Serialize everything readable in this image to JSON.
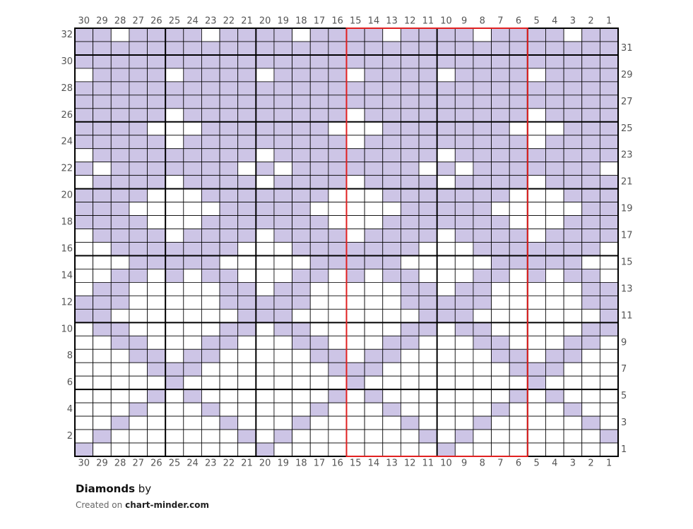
{
  "title": "Diamonds",
  "by": "by",
  "created_on": "Created on",
  "site": "chart-minder.com",
  "filled_color": "#cdc5e6",
  "empty_color": "#ffffff",
  "repeat_color": "#e02020",
  "repeat_columns": [
    15,
    6
  ],
  "column_numbers": [
    30,
    29,
    28,
    27,
    26,
    25,
    24,
    23,
    22,
    21,
    20,
    19,
    18,
    17,
    16,
    15,
    14,
    13,
    12,
    11,
    10,
    9,
    8,
    7,
    6,
    5,
    4,
    3,
    2,
    1
  ],
  "row_numbers": [
    32,
    31,
    30,
    29,
    28,
    27,
    26,
    25,
    24,
    23,
    22,
    21,
    20,
    19,
    18,
    17,
    16,
    15,
    14,
    13,
    12,
    11,
    10,
    9,
    8,
    7,
    6,
    5,
    4,
    3,
    2,
    1
  ],
  "cells": [
    [
      1,
      1,
      0,
      1,
      1,
      1,
      1,
      0,
      1,
      1,
      1,
      1,
      0,
      1,
      1,
      1,
      1,
      0,
      1,
      1,
      1,
      1,
      0,
      1,
      1,
      1,
      1,
      0,
      1,
      1
    ],
    [
      1,
      1,
      1,
      1,
      1,
      1,
      1,
      1,
      1,
      1,
      1,
      1,
      1,
      1,
      1,
      1,
      1,
      1,
      1,
      1,
      1,
      1,
      1,
      1,
      1,
      1,
      1,
      1,
      1,
      1
    ],
    [
      1,
      1,
      1,
      1,
      1,
      1,
      1,
      1,
      1,
      1,
      1,
      1,
      1,
      1,
      1,
      1,
      1,
      1,
      1,
      1,
      1,
      1,
      1,
      1,
      1,
      1,
      1,
      1,
      1,
      1
    ],
    [
      0,
      1,
      1,
      1,
      1,
      0,
      1,
      1,
      1,
      1,
      0,
      1,
      1,
      1,
      1,
      0,
      1,
      1,
      1,
      1,
      0,
      1,
      1,
      1,
      1,
      0,
      1,
      1,
      1,
      1
    ],
    [
      1,
      1,
      1,
      1,
      1,
      1,
      1,
      1,
      1,
      1,
      1,
      1,
      1,
      1,
      1,
      1,
      1,
      1,
      1,
      1,
      1,
      1,
      1,
      1,
      1,
      1,
      1,
      1,
      1,
      1
    ],
    [
      1,
      1,
      1,
      1,
      1,
      1,
      1,
      1,
      1,
      1,
      1,
      1,
      1,
      1,
      1,
      1,
      1,
      1,
      1,
      1,
      1,
      1,
      1,
      1,
      1,
      1,
      1,
      1,
      1,
      1
    ],
    [
      1,
      1,
      1,
      1,
      1,
      0,
      1,
      1,
      1,
      1,
      1,
      1,
      1,
      1,
      1,
      0,
      1,
      1,
      1,
      1,
      1,
      1,
      1,
      1,
      1,
      0,
      1,
      1,
      1,
      1
    ],
    [
      1,
      1,
      1,
      1,
      0,
      0,
      0,
      1,
      1,
      1,
      1,
      1,
      1,
      1,
      0,
      0,
      0,
      1,
      1,
      1,
      1,
      1,
      1,
      1,
      0,
      0,
      0,
      1,
      1,
      1
    ],
    [
      1,
      1,
      1,
      1,
      1,
      0,
      1,
      1,
      1,
      1,
      1,
      1,
      1,
      1,
      1,
      0,
      1,
      1,
      1,
      1,
      1,
      1,
      1,
      1,
      1,
      0,
      1,
      1,
      1,
      1
    ],
    [
      0,
      1,
      1,
      1,
      1,
      1,
      1,
      1,
      1,
      1,
      0,
      1,
      1,
      1,
      1,
      1,
      1,
      1,
      1,
      1,
      0,
      1,
      1,
      1,
      1,
      1,
      1,
      1,
      1,
      1
    ],
    [
      1,
      0,
      1,
      1,
      1,
      1,
      1,
      1,
      1,
      0,
      1,
      0,
      1,
      1,
      1,
      1,
      1,
      1,
      1,
      0,
      1,
      0,
      1,
      1,
      1,
      1,
      1,
      1,
      1,
      0
    ],
    [
      0,
      1,
      1,
      1,
      1,
      0,
      1,
      1,
      1,
      1,
      0,
      1,
      1,
      1,
      1,
      0,
      1,
      1,
      1,
      1,
      0,
      1,
      1,
      1,
      1,
      0,
      1,
      1,
      1,
      1
    ],
    [
      1,
      1,
      1,
      1,
      0,
      0,
      0,
      1,
      1,
      1,
      1,
      1,
      1,
      1,
      0,
      0,
      0,
      1,
      1,
      1,
      1,
      1,
      1,
      1,
      0,
      0,
      0,
      1,
      1,
      1
    ],
    [
      1,
      1,
      1,
      0,
      0,
      0,
      0,
      0,
      1,
      1,
      1,
      1,
      1,
      0,
      0,
      0,
      0,
      0,
      1,
      1,
      1,
      1,
      1,
      0,
      0,
      0,
      0,
      0,
      1,
      1
    ],
    [
      1,
      1,
      1,
      1,
      0,
      0,
      0,
      1,
      1,
      1,
      1,
      1,
      1,
      1,
      0,
      0,
      0,
      1,
      1,
      1,
      1,
      1,
      1,
      1,
      0,
      0,
      0,
      1,
      1,
      1
    ],
    [
      0,
      1,
      1,
      1,
      1,
      0,
      1,
      1,
      1,
      1,
      0,
      1,
      1,
      1,
      1,
      0,
      1,
      1,
      1,
      1,
      0,
      1,
      1,
      1,
      1,
      0,
      1,
      1,
      1,
      1
    ],
    [
      0,
      0,
      1,
      1,
      1,
      1,
      1,
      1,
      1,
      0,
      0,
      0,
      1,
      1,
      1,
      1,
      1,
      1,
      1,
      0,
      0,
      0,
      1,
      1,
      1,
      1,
      1,
      1,
      1,
      0
    ],
    [
      0,
      0,
      0,
      1,
      1,
      1,
      1,
      1,
      0,
      0,
      0,
      0,
      0,
      1,
      1,
      1,
      1,
      1,
      0,
      0,
      0,
      0,
      0,
      1,
      1,
      1,
      1,
      1,
      0,
      0
    ],
    [
      0,
      0,
      1,
      1,
      0,
      1,
      0,
      1,
      1,
      0,
      0,
      0,
      1,
      1,
      0,
      1,
      0,
      1,
      1,
      0,
      0,
      0,
      1,
      1,
      0,
      1,
      0,
      1,
      1,
      0
    ],
    [
      0,
      1,
      1,
      0,
      0,
      0,
      0,
      0,
      1,
      1,
      0,
      1,
      1,
      0,
      0,
      0,
      0,
      0,
      1,
      1,
      0,
      1,
      1,
      0,
      0,
      0,
      0,
      0,
      1,
      1
    ],
    [
      1,
      1,
      1,
      0,
      0,
      0,
      0,
      0,
      1,
      1,
      1,
      1,
      1,
      0,
      0,
      0,
      0,
      0,
      1,
      1,
      1,
      1,
      1,
      0,
      0,
      0,
      0,
      0,
      1,
      1
    ],
    [
      1,
      1,
      0,
      0,
      0,
      0,
      0,
      0,
      0,
      1,
      1,
      1,
      0,
      0,
      0,
      0,
      0,
      0,
      0,
      1,
      1,
      1,
      0,
      0,
      0,
      0,
      0,
      0,
      0,
      1
    ],
    [
      0,
      1,
      1,
      0,
      0,
      0,
      0,
      0,
      1,
      1,
      0,
      1,
      1,
      0,
      0,
      0,
      0,
      0,
      1,
      1,
      0,
      1,
      1,
      0,
      0,
      0,
      0,
      0,
      1,
      1
    ],
    [
      0,
      0,
      1,
      1,
      0,
      0,
      0,
      1,
      1,
      0,
      0,
      0,
      1,
      1,
      0,
      0,
      0,
      1,
      1,
      0,
      0,
      0,
      1,
      1,
      0,
      0,
      0,
      1,
      1,
      0
    ],
    [
      0,
      0,
      0,
      1,
      1,
      0,
      1,
      1,
      0,
      0,
      0,
      0,
      0,
      1,
      1,
      0,
      1,
      1,
      0,
      0,
      0,
      0,
      0,
      1,
      1,
      0,
      1,
      1,
      0,
      0
    ],
    [
      0,
      0,
      0,
      0,
      1,
      1,
      1,
      0,
      0,
      0,
      0,
      0,
      0,
      0,
      1,
      1,
      1,
      0,
      0,
      0,
      0,
      0,
      0,
      0,
      1,
      1,
      1,
      0,
      0,
      0
    ],
    [
      0,
      0,
      0,
      0,
      0,
      1,
      0,
      0,
      0,
      0,
      0,
      0,
      0,
      0,
      0,
      1,
      0,
      0,
      0,
      0,
      0,
      0,
      0,
      0,
      0,
      1,
      0,
      0,
      0,
      0
    ],
    [
      0,
      0,
      0,
      0,
      1,
      0,
      1,
      0,
      0,
      0,
      0,
      0,
      0,
      0,
      1,
      0,
      1,
      0,
      0,
      0,
      0,
      0,
      0,
      0,
      1,
      0,
      1,
      0,
      0,
      0
    ],
    [
      0,
      0,
      0,
      1,
      0,
      0,
      0,
      1,
      0,
      0,
      0,
      0,
      0,
      1,
      0,
      0,
      0,
      1,
      0,
      0,
      0,
      0,
      0,
      1,
      0,
      0,
      0,
      1,
      0,
      0
    ],
    [
      0,
      0,
      1,
      0,
      0,
      0,
      0,
      0,
      1,
      0,
      0,
      0,
      1,
      0,
      0,
      0,
      0,
      0,
      1,
      0,
      0,
      0,
      1,
      0,
      0,
      0,
      0,
      0,
      1,
      0
    ],
    [
      0,
      1,
      0,
      0,
      0,
      0,
      0,
      0,
      0,
      1,
      0,
      1,
      0,
      0,
      0,
      0,
      0,
      0,
      0,
      1,
      0,
      1,
      0,
      0,
      0,
      0,
      0,
      0,
      0,
      1
    ],
    [
      1,
      0,
      0,
      0,
      0,
      0,
      0,
      0,
      0,
      0,
      1,
      0,
      0,
      0,
      0,
      0,
      0,
      0,
      0,
      0,
      1,
      0,
      0,
      0,
      0,
      0,
      0,
      0,
      0,
      0
    ]
  ]
}
